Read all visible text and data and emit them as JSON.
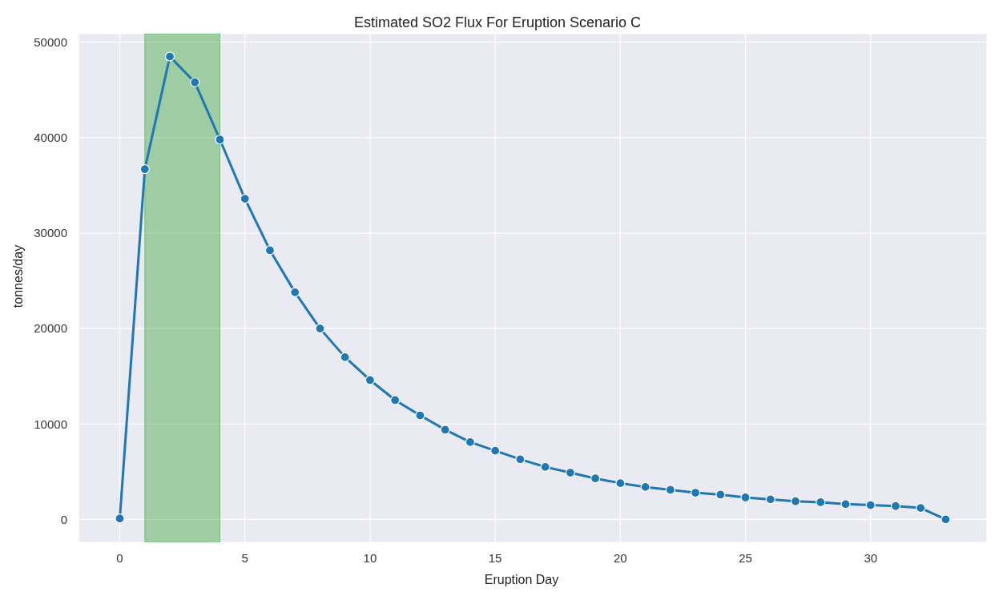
{
  "chart_data": {
    "type": "line",
    "title": "Estimated SO2 Flux For Eruption Scenario C",
    "xlabel": "Eruption Day",
    "ylabel": "tonnes/day",
    "x": [
      0,
      1,
      2,
      3,
      4,
      5,
      6,
      7,
      8,
      9,
      10,
      11,
      12,
      13,
      14,
      15,
      16,
      17,
      18,
      19,
      20,
      21,
      22,
      23,
      24,
      25,
      26,
      27,
      28,
      29,
      30,
      31,
      32,
      33
    ],
    "series": [
      {
        "color": "#1f77b4",
        "values": [
          100,
          36700,
          48500,
          45800,
          39800,
          33600,
          28200,
          23800,
          20000,
          17000,
          14600,
          12500,
          10900,
          9400,
          8100,
          7200,
          6300,
          5500,
          4900,
          4300,
          3800,
          3400,
          3100,
          2800,
          2600,
          2300,
          2100,
          1900,
          1800,
          1600,
          1500,
          1400,
          1200,
          0
        ]
      }
    ],
    "xlim": [
      -1.65,
      34.65
    ],
    "xticks": [
      0,
      5,
      10,
      15,
      20,
      25,
      30
    ],
    "ylim": [
      -2400,
      50900
    ],
    "yticks": [
      0,
      10000,
      20000,
      30000,
      40000,
      50000
    ],
    "bands": [
      {
        "axis": "x",
        "from": 1,
        "to": 4,
        "color": "#2ca02c"
      }
    ],
    "grid": true,
    "marker": "circle",
    "line_style": "solid"
  }
}
